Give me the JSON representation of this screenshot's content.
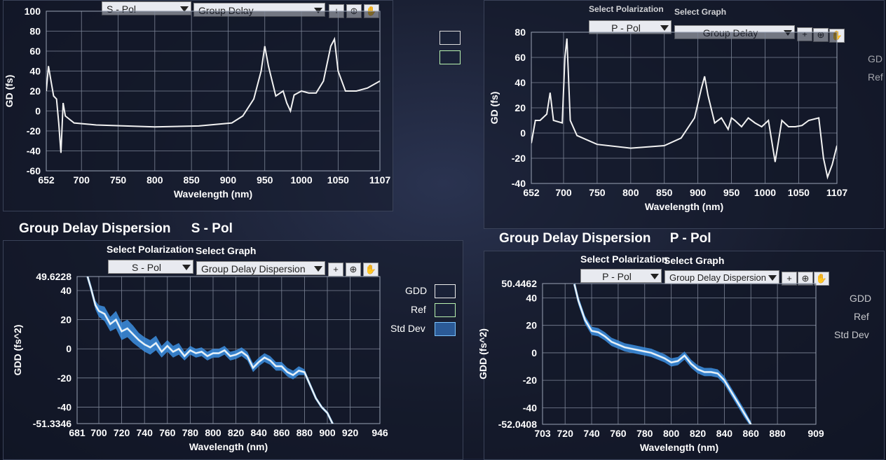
{
  "top_left": {
    "polarization_value": "S - Pol",
    "graph_value": "Group Delay"
  },
  "top_right": {
    "label_polarization": "Select Polarization",
    "label_graph": "Select Graph",
    "polarization_value": "P - Pol",
    "graph_value": "Group Delay",
    "legend_partial": [
      "GD",
      "Ref"
    ]
  },
  "bottom_left": {
    "title": "Group Delay Dispersion",
    "pol_title": "S - Pol",
    "label_polarization": "Select Polarization",
    "label_graph": "Select Graph",
    "polarization_value": "S - Pol",
    "graph_value": "Group Delay Dispersion",
    "legend": [
      "GDD",
      "Ref",
      "Std Dev"
    ]
  },
  "bottom_right": {
    "title": "Group Delay Dispersion",
    "pol_title": "P - Pol",
    "label_polarization": "Select Polarization",
    "label_graph": "Select Graph",
    "polarization_value": "P - Pol",
    "graph_value": "Group Delay Dispersion",
    "legend": [
      "GDD",
      "Ref",
      "Std Dev"
    ]
  },
  "icons": {
    "cursor": "crosshair-icon",
    "zoom": "zoom-icon",
    "pan": "hand-icon"
  },
  "colors": {
    "gd_line": "#f2f2f2",
    "ref_line": "#b9f3b0",
    "std_fill": "#3d8fe0",
    "std_line": "#7cc4ff"
  },
  "chart_data": [
    {
      "id": "gd-s",
      "type": "line",
      "xlabel": "Wavelength (nm)",
      "ylabel": "GD (fs)",
      "xlim": [
        652,
        1107
      ],
      "ylim": [
        -60,
        100
      ],
      "xticks": [
        "652",
        "700",
        "750",
        "800",
        "850",
        "900",
        "950",
        "1000",
        "1050",
        "1107"
      ],
      "xtick_values": [
        652,
        700,
        750,
        800,
        850,
        900,
        950,
        1000,
        1050,
        1107
      ],
      "yticks": [
        "100",
        "80",
        "60",
        "40",
        "20",
        "0",
        "-20",
        "-40",
        "-60"
      ],
      "ytick_values": [
        100,
        80,
        60,
        40,
        20,
        0,
        -20,
        -40,
        -60
      ],
      "series": [
        {
          "values_x": [
            652,
            655,
            658,
            662,
            666,
            669,
            672,
            675,
            678,
            690,
            720,
            800,
            860,
            905,
            920,
            935,
            945,
            950,
            955,
            965,
            975,
            980,
            985,
            990,
            1000,
            1010,
            1020,
            1030,
            1040,
            1045,
            1050,
            1060,
            1075,
            1090,
            1107
          ],
          "values_y": [
            20,
            45,
            32,
            15,
            12,
            -12,
            -42,
            8,
            -5,
            -12,
            -14,
            -16,
            -15,
            -12,
            -5,
            12,
            40,
            65,
            45,
            15,
            20,
            8,
            0,
            16,
            20,
            18,
            18,
            30,
            65,
            72,
            40,
            20,
            20,
            23,
            30
          ]
        }
      ]
    },
    {
      "id": "gd-p",
      "type": "line",
      "xlabel": "Wavelength (nm)",
      "ylabel": "GD (fs)",
      "xlim": [
        652,
        1107
      ],
      "ylim": [
        -40,
        80
      ],
      "xticks": [
        "652",
        "700",
        "750",
        "800",
        "850",
        "900",
        "950",
        "1000",
        "1050",
        "1107"
      ],
      "xtick_values": [
        652,
        700,
        750,
        800,
        850,
        900,
        950,
        1000,
        1050,
        1107
      ],
      "yticks": [
        "80",
        "60",
        "40",
        "20",
        "0",
        "-20",
        "-40"
      ],
      "ytick_values": [
        80,
        60,
        40,
        20,
        0,
        -20,
        -40
      ],
      "series": [
        {
          "values_x": [
            652,
            658,
            665,
            675,
            680,
            685,
            698,
            702,
            705,
            710,
            720,
            750,
            800,
            850,
            875,
            895,
            905,
            910,
            915,
            925,
            935,
            945,
            950,
            955,
            965,
            975,
            985,
            995,
            1005,
            1015,
            1025,
            1035,
            1045,
            1055,
            1065,
            1080,
            1087,
            1093,
            1100,
            1107
          ],
          "values_y": [
            -8,
            10,
            10,
            15,
            32,
            10,
            8,
            60,
            75,
            10,
            -2,
            -9,
            -12,
            -10,
            -4,
            12,
            35,
            45,
            30,
            8,
            12,
            3,
            12,
            10,
            5,
            12,
            8,
            5,
            10,
            -23,
            10,
            5,
            5,
            6,
            10,
            12,
            -20,
            -35,
            -25,
            -10
          ]
        }
      ]
    },
    {
      "id": "gdd-s",
      "type": "line",
      "xlabel": "Wavelength (nm)",
      "ylabel": "GDD (fs^2)",
      "xlim": [
        681,
        946
      ],
      "ylim": [
        -51.3346,
        49.6228
      ],
      "xticks": [
        "681",
        "700",
        "720",
        "740",
        "760",
        "780",
        "800",
        "820",
        "840",
        "860",
        "880",
        "900",
        "920",
        "946"
      ],
      "xtick_values": [
        681,
        700,
        720,
        740,
        760,
        780,
        800,
        820,
        840,
        860,
        880,
        900,
        920,
        946
      ],
      "yticks": [
        "49.6228",
        "40",
        "20",
        "0",
        "-20",
        "-40",
        "-51.3346"
      ],
      "ytick_values": [
        49.6228,
        40,
        20,
        0,
        -20,
        -40,
        -51.3346
      ],
      "series": [
        {
          "name": "GDD",
          "values_x": [
            690,
            693,
            697,
            700,
            705,
            710,
            715,
            720,
            725,
            730,
            735,
            740,
            745,
            750,
            755,
            760,
            765,
            770,
            775,
            780,
            785,
            790,
            795,
            800,
            805,
            810,
            815,
            820,
            825,
            830,
            835,
            840,
            845,
            850,
            855,
            860,
            865,
            870,
            875,
            880,
            885,
            890,
            895,
            900,
            905
          ],
          "values_y": [
            50,
            42,
            30,
            26,
            24,
            17,
            20,
            12,
            14,
            10,
            6,
            3,
            1,
            4,
            -2,
            2,
            -2,
            0,
            -5,
            -1,
            -3,
            -2,
            -5,
            -3,
            -3,
            -1,
            -5,
            -4,
            -2,
            -5,
            -13,
            -9,
            -6,
            -8,
            -12,
            -12,
            -16,
            -18,
            -15,
            -16,
            -25,
            -34,
            -40,
            -44,
            -52
          ],
          "std_band": [
            0,
            0,
            2,
            3,
            4,
            4,
            5,
            5,
            5,
            5,
            4,
            4,
            4,
            4,
            3,
            3,
            3,
            3,
            2,
            2,
            2,
            2,
            2,
            2,
            2,
            2,
            2,
            2,
            2,
            2,
            2,
            2,
            2,
            2,
            2,
            2,
            2,
            2,
            2,
            1,
            0,
            0,
            0,
            0,
            0
          ]
        }
      ]
    },
    {
      "id": "gdd-p",
      "type": "line",
      "xlabel": "Wavelength (nm)",
      "ylabel": "GDD (fs^2)",
      "xlim": [
        703,
        909
      ],
      "ylim": [
        -52.0408,
        50.4462
      ],
      "xticks": [
        "703",
        "720",
        "740",
        "760",
        "780",
        "800",
        "820",
        "840",
        "860",
        "880",
        "909"
      ],
      "xtick_values": [
        703,
        720,
        740,
        760,
        780,
        800,
        820,
        840,
        860,
        880,
        909
      ],
      "yticks": [
        "50.4462",
        "40",
        "20",
        "0",
        "-20",
        "-40",
        "-52.0408"
      ],
      "ytick_values": [
        50.4462,
        40,
        20,
        0,
        -20,
        -40,
        -52.0408
      ],
      "series": [
        {
          "name": "GDD",
          "values_x": [
            727,
            730,
            735,
            740,
            745,
            750,
            755,
            760,
            765,
            770,
            775,
            780,
            785,
            790,
            795,
            800,
            805,
            810,
            815,
            820,
            825,
            830,
            835,
            840,
            845,
            850,
            855,
            860
          ],
          "values_y": [
            50,
            38,
            24,
            16,
            15,
            12,
            8,
            6,
            4,
            3,
            2,
            1,
            0,
            -2,
            -4,
            -7,
            -6,
            -2,
            -8,
            -12,
            -14,
            -14,
            -15,
            -20,
            -28,
            -36,
            -44,
            -52
          ],
          "std_band": [
            1,
            2,
            2,
            2,
            2,
            2,
            2,
            2,
            2,
            2,
            2,
            2,
            2,
            2,
            2,
            2,
            2,
            2,
            2,
            2,
            2,
            2,
            2,
            2,
            2,
            2,
            2,
            1
          ]
        }
      ]
    }
  ]
}
